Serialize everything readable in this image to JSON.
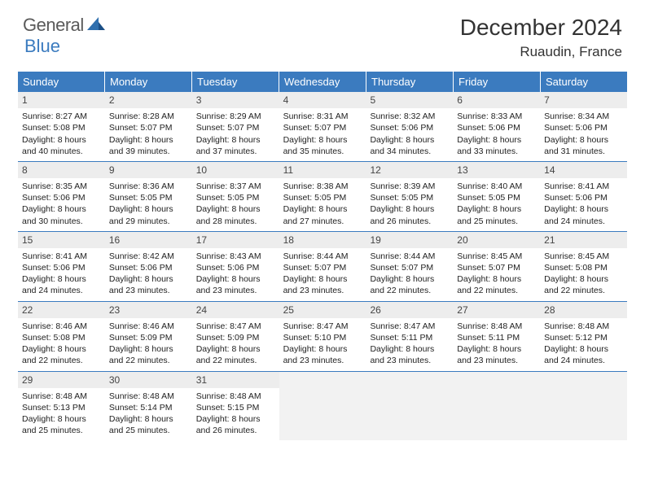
{
  "brand": {
    "part1": "General",
    "part2": "Blue"
  },
  "title": "December 2024",
  "location": "Ruaudin, France",
  "colors": {
    "header_bg": "#3b7bbf",
    "header_text": "#ffffff",
    "daynum_bg": "#ededed",
    "border": "#3b7bbf",
    "empty_bg": "#f2f2f2"
  },
  "day_headers": [
    "Sunday",
    "Monday",
    "Tuesday",
    "Wednesday",
    "Thursday",
    "Friday",
    "Saturday"
  ],
  "weeks": [
    [
      {
        "n": "1",
        "sr": "Sunrise: 8:27 AM",
        "ss": "Sunset: 5:08 PM",
        "dl": "Daylight: 8 hours and 40 minutes."
      },
      {
        "n": "2",
        "sr": "Sunrise: 8:28 AM",
        "ss": "Sunset: 5:07 PM",
        "dl": "Daylight: 8 hours and 39 minutes."
      },
      {
        "n": "3",
        "sr": "Sunrise: 8:29 AM",
        "ss": "Sunset: 5:07 PM",
        "dl": "Daylight: 8 hours and 37 minutes."
      },
      {
        "n": "4",
        "sr": "Sunrise: 8:31 AM",
        "ss": "Sunset: 5:07 PM",
        "dl": "Daylight: 8 hours and 35 minutes."
      },
      {
        "n": "5",
        "sr": "Sunrise: 8:32 AM",
        "ss": "Sunset: 5:06 PM",
        "dl": "Daylight: 8 hours and 34 minutes."
      },
      {
        "n": "6",
        "sr": "Sunrise: 8:33 AM",
        "ss": "Sunset: 5:06 PM",
        "dl": "Daylight: 8 hours and 33 minutes."
      },
      {
        "n": "7",
        "sr": "Sunrise: 8:34 AM",
        "ss": "Sunset: 5:06 PM",
        "dl": "Daylight: 8 hours and 31 minutes."
      }
    ],
    [
      {
        "n": "8",
        "sr": "Sunrise: 8:35 AM",
        "ss": "Sunset: 5:06 PM",
        "dl": "Daylight: 8 hours and 30 minutes."
      },
      {
        "n": "9",
        "sr": "Sunrise: 8:36 AM",
        "ss": "Sunset: 5:05 PM",
        "dl": "Daylight: 8 hours and 29 minutes."
      },
      {
        "n": "10",
        "sr": "Sunrise: 8:37 AM",
        "ss": "Sunset: 5:05 PM",
        "dl": "Daylight: 8 hours and 28 minutes."
      },
      {
        "n": "11",
        "sr": "Sunrise: 8:38 AM",
        "ss": "Sunset: 5:05 PM",
        "dl": "Daylight: 8 hours and 27 minutes."
      },
      {
        "n": "12",
        "sr": "Sunrise: 8:39 AM",
        "ss": "Sunset: 5:05 PM",
        "dl": "Daylight: 8 hours and 26 minutes."
      },
      {
        "n": "13",
        "sr": "Sunrise: 8:40 AM",
        "ss": "Sunset: 5:05 PM",
        "dl": "Daylight: 8 hours and 25 minutes."
      },
      {
        "n": "14",
        "sr": "Sunrise: 8:41 AM",
        "ss": "Sunset: 5:06 PM",
        "dl": "Daylight: 8 hours and 24 minutes."
      }
    ],
    [
      {
        "n": "15",
        "sr": "Sunrise: 8:41 AM",
        "ss": "Sunset: 5:06 PM",
        "dl": "Daylight: 8 hours and 24 minutes."
      },
      {
        "n": "16",
        "sr": "Sunrise: 8:42 AM",
        "ss": "Sunset: 5:06 PM",
        "dl": "Daylight: 8 hours and 23 minutes."
      },
      {
        "n": "17",
        "sr": "Sunrise: 8:43 AM",
        "ss": "Sunset: 5:06 PM",
        "dl": "Daylight: 8 hours and 23 minutes."
      },
      {
        "n": "18",
        "sr": "Sunrise: 8:44 AM",
        "ss": "Sunset: 5:07 PM",
        "dl": "Daylight: 8 hours and 23 minutes."
      },
      {
        "n": "19",
        "sr": "Sunrise: 8:44 AM",
        "ss": "Sunset: 5:07 PM",
        "dl": "Daylight: 8 hours and 22 minutes."
      },
      {
        "n": "20",
        "sr": "Sunrise: 8:45 AM",
        "ss": "Sunset: 5:07 PM",
        "dl": "Daylight: 8 hours and 22 minutes."
      },
      {
        "n": "21",
        "sr": "Sunrise: 8:45 AM",
        "ss": "Sunset: 5:08 PM",
        "dl": "Daylight: 8 hours and 22 minutes."
      }
    ],
    [
      {
        "n": "22",
        "sr": "Sunrise: 8:46 AM",
        "ss": "Sunset: 5:08 PM",
        "dl": "Daylight: 8 hours and 22 minutes."
      },
      {
        "n": "23",
        "sr": "Sunrise: 8:46 AM",
        "ss": "Sunset: 5:09 PM",
        "dl": "Daylight: 8 hours and 22 minutes."
      },
      {
        "n": "24",
        "sr": "Sunrise: 8:47 AM",
        "ss": "Sunset: 5:09 PM",
        "dl": "Daylight: 8 hours and 22 minutes."
      },
      {
        "n": "25",
        "sr": "Sunrise: 8:47 AM",
        "ss": "Sunset: 5:10 PM",
        "dl": "Daylight: 8 hours and 23 minutes."
      },
      {
        "n": "26",
        "sr": "Sunrise: 8:47 AM",
        "ss": "Sunset: 5:11 PM",
        "dl": "Daylight: 8 hours and 23 minutes."
      },
      {
        "n": "27",
        "sr": "Sunrise: 8:48 AM",
        "ss": "Sunset: 5:11 PM",
        "dl": "Daylight: 8 hours and 23 minutes."
      },
      {
        "n": "28",
        "sr": "Sunrise: 8:48 AM",
        "ss": "Sunset: 5:12 PM",
        "dl": "Daylight: 8 hours and 24 minutes."
      }
    ],
    [
      {
        "n": "29",
        "sr": "Sunrise: 8:48 AM",
        "ss": "Sunset: 5:13 PM",
        "dl": "Daylight: 8 hours and 25 minutes."
      },
      {
        "n": "30",
        "sr": "Sunrise: 8:48 AM",
        "ss": "Sunset: 5:14 PM",
        "dl": "Daylight: 8 hours and 25 minutes."
      },
      {
        "n": "31",
        "sr": "Sunrise: 8:48 AM",
        "ss": "Sunset: 5:15 PM",
        "dl": "Daylight: 8 hours and 26 minutes."
      },
      {
        "empty": true
      },
      {
        "empty": true
      },
      {
        "empty": true
      },
      {
        "empty": true
      }
    ]
  ]
}
